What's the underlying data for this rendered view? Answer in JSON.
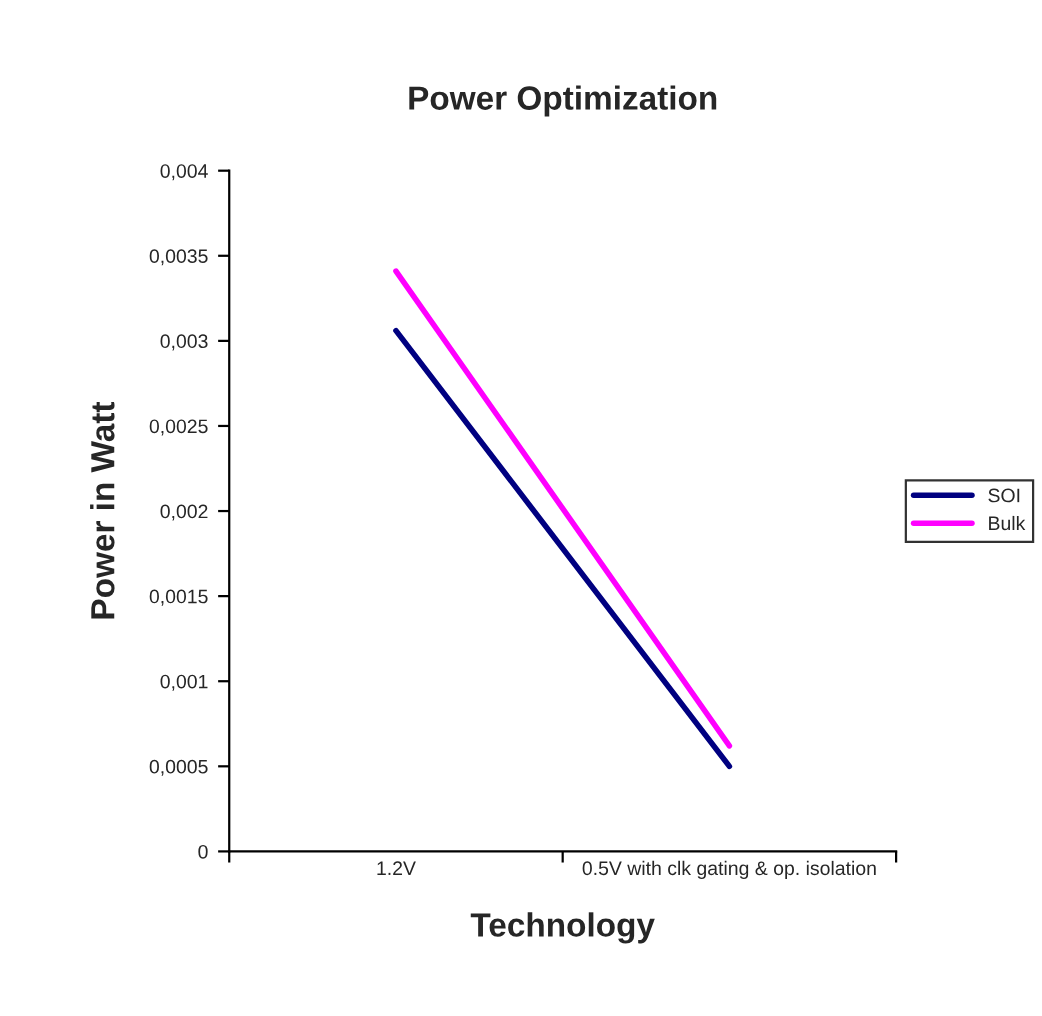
{
  "chart_data": {
    "type": "line",
    "title": "Power Optimization",
    "xlabel": "Technology",
    "ylabel": "Power in Watt",
    "categories": [
      "1.2V",
      "0.5V with clk gating & op. isolation"
    ],
    "series": [
      {
        "name": "SOI",
        "color": "#000080",
        "values": [
          0.00306,
          0.0005
        ]
      },
      {
        "name": "Bulk",
        "color": "#ff00ff",
        "values": [
          0.00341,
          0.00062
        ]
      }
    ],
    "ylim": [
      0,
      0.004
    ],
    "yticks": [
      0,
      {
        "value": 0.0005,
        "label": "0,0005"
      },
      {
        "value": 0.001,
        "label": "0,001"
      },
      {
        "value": 0.0015,
        "label": "0,0015"
      },
      {
        "value": 0.002,
        "label": "0,002"
      },
      {
        "value": 0.0025,
        "label": "0,0025"
      },
      {
        "value": 0.003,
        "label": "0,003"
      },
      {
        "value": 0.0035,
        "label": "0,0035"
      },
      {
        "value": 0.004,
        "label": "0,004"
      }
    ],
    "grid": false,
    "legend": "right",
    "marker": "none",
    "line_style": "solid"
  }
}
